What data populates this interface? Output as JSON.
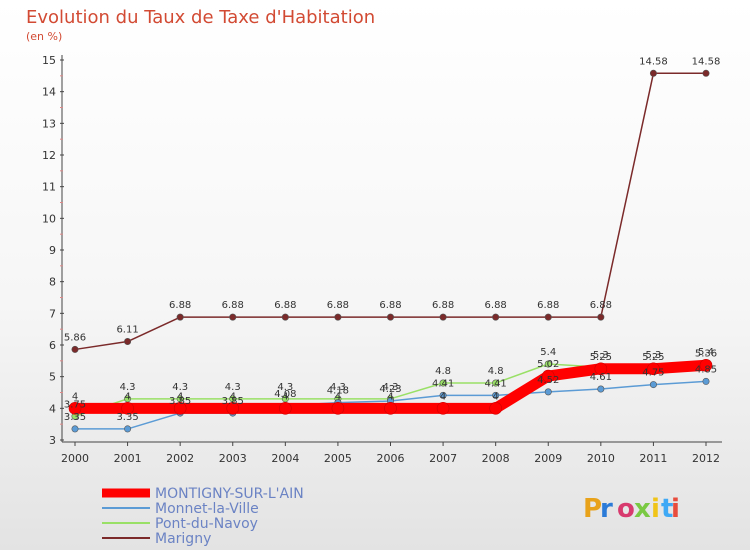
{
  "chart_data": {
    "type": "line",
    "title": "Evolution du Taux de Taxe d'Habitation",
    "subtitle": "(en %)",
    "x": [
      "2000",
      "2001",
      "2002",
      "2003",
      "2004",
      "2005",
      "2006",
      "2007",
      "2008",
      "2009",
      "2010",
      "2011",
      "2012"
    ],
    "ylim": [
      3,
      15
    ],
    "yticks": [
      3,
      4,
      5,
      6,
      7,
      8,
      9,
      10,
      11,
      12,
      13,
      14,
      15
    ],
    "grid": false,
    "legend_position": "bottom-left",
    "series": [
      {
        "name": "MONTIGNY-SUR-L'AIN",
        "color": "#ff0000",
        "values": [
          4,
          4,
          4,
          4,
          4,
          4,
          4,
          4,
          4,
          5.02,
          5.25,
          5.25,
          5.36
        ],
        "labels": [
          "4",
          "4",
          "4",
          "4",
          "4",
          "4",
          "4",
          "4",
          "4",
          "5.02",
          "5.25",
          "5.25",
          "5.36"
        ]
      },
      {
        "name": "Monnet-la-Ville",
        "color": "#5b9bd5",
        "values": [
          3.35,
          3.35,
          3.85,
          3.85,
          4.08,
          4.18,
          4.23,
          4.41,
          4.41,
          4.52,
          4.61,
          4.75,
          4.85
        ],
        "labels": [
          "3.35",
          "3.35",
          "3.85",
          "3.85",
          "4.08",
          "4.18",
          "4.23",
          "4.41",
          "4.41",
          "4.52",
          "4.61",
          "4.75",
          "4.85"
        ]
      },
      {
        "name": "Pont-du-Navoy",
        "color": "#99e066",
        "values": [
          3.75,
          4.3,
          4.3,
          4.3,
          4.3,
          4.3,
          4.3,
          4.8,
          4.8,
          5.4,
          5.3,
          5.3,
          5.4
        ],
        "labels": [
          "3.75",
          "4.3",
          "4.3",
          "4.3",
          "4.3",
          "4.3",
          "4.3",
          "4.8",
          "4.8",
          "5.4",
          "5.3",
          "5.3",
          "5.4"
        ]
      },
      {
        "name": "Marigny",
        "color": "#7b2a2a",
        "values": [
          5.86,
          6.11,
          6.88,
          6.88,
          6.88,
          6.88,
          6.88,
          6.88,
          6.88,
          6.88,
          6.88,
          14.58,
          14.58
        ],
        "labels": [
          "5.86",
          "6.11",
          "6.88",
          "6.88",
          "6.88",
          "6.88",
          "6.88",
          "6.88",
          "6.88",
          "6.88",
          "6.88",
          "14.58",
          "14.58"
        ]
      }
    ]
  },
  "logo": {
    "text": "Proxiti",
    "colors": [
      "#e8a21a",
      "#2b7bd8",
      "#d83a6e",
      "#7ac943",
      "#f0c419",
      "#3fa9f5",
      "#e84c3d"
    ]
  }
}
